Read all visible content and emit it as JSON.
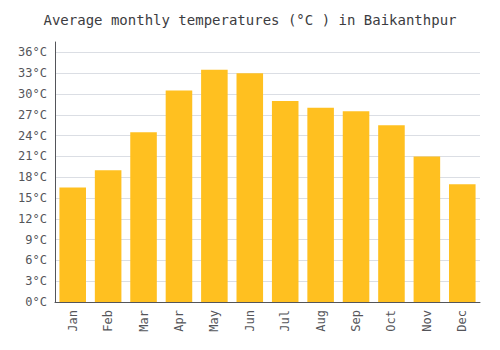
{
  "chart_data": {
    "type": "bar",
    "title": "Average monthly temperatures (°C ) in Baikanthpur",
    "categories": [
      "Jan",
      "Feb",
      "Mar",
      "Apr",
      "May",
      "Jun",
      "Jul",
      "Aug",
      "Sep",
      "Oct",
      "Nov",
      "Dec"
    ],
    "values": [
      16.5,
      19.0,
      24.5,
      30.5,
      33.5,
      33.0,
      29.0,
      28.0,
      27.5,
      25.5,
      21.0,
      17.0
    ],
    "color": "#FFC020",
    "ylim": [
      0,
      37.5
    ],
    "yticks": [
      {
        "value": 0,
        "label": "0°C"
      },
      {
        "value": 3,
        "label": "3°C"
      },
      {
        "value": 6,
        "label": "6°C"
      },
      {
        "value": 9,
        "label": "9°C"
      },
      {
        "value": 12,
        "label": "12°C"
      },
      {
        "value": 15,
        "label": "15°C"
      },
      {
        "value": 18,
        "label": "18°C"
      },
      {
        "value": 21,
        "label": "21°C"
      },
      {
        "value": 24,
        "label": "24°C"
      },
      {
        "value": 27,
        "label": "27°C"
      },
      {
        "value": 30,
        "label": "30°C"
      },
      {
        "value": 33,
        "label": "33°C"
      },
      {
        "value": 36,
        "label": "36°C"
      }
    ],
    "grid": true
  }
}
